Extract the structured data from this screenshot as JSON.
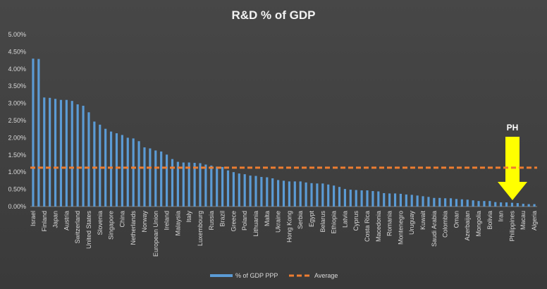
{
  "chart_data": {
    "type": "bar",
    "title": "R&D % of GDP",
    "categories": [
      "Israel",
      null,
      "Finland",
      null,
      "Japan",
      null,
      "Austria",
      null,
      "Switzerland",
      null,
      "United States",
      null,
      "Slovenia",
      null,
      "Singapore",
      null,
      "China",
      null,
      "Netherlands",
      null,
      "Norway",
      null,
      "European Union",
      null,
      "Ireland",
      null,
      "Malaysia",
      null,
      "Italy",
      null,
      "Luxembourg",
      null,
      "Russia",
      null,
      "Brazil",
      null,
      "Greece",
      null,
      "Poland",
      null,
      "Lithuania",
      null,
      "Malta",
      null,
      "Ukraine",
      null,
      "Hong Kong",
      null,
      "Serbia",
      null,
      "Egypt",
      null,
      "Belarus",
      null,
      "Ethiopia",
      null,
      "Latvia",
      null,
      "Cyprus",
      null,
      "Costa Rica",
      null,
      "Macedonia",
      null,
      "Romania",
      null,
      "Montenegro",
      null,
      "Uruguay",
      null,
      "Kuwait",
      null,
      "Saudi Arabia",
      null,
      "Colombia",
      null,
      "Oman",
      null,
      "Azerbaijan",
      null,
      "Mongolia",
      null,
      "Bolivia",
      null,
      "Iran",
      null,
      "Philippines",
      null,
      "Macau",
      null,
      "Algeria"
    ],
    "series": [
      {
        "name": "% of GDP PPP",
        "color": "#5b9bd5",
        "values": [
          4.3,
          4.29,
          3.17,
          3.16,
          3.13,
          3.1,
          3.1,
          3.07,
          2.97,
          2.93,
          2.74,
          2.47,
          2.38,
          2.26,
          2.18,
          2.13,
          2.08,
          2.0,
          1.98,
          1.9,
          1.72,
          1.69,
          1.63,
          1.6,
          1.51,
          1.38,
          1.3,
          1.28,
          1.28,
          1.27,
          1.26,
          1.22,
          1.19,
          1.16,
          1.15,
          1.05,
          1.0,
          0.96,
          0.94,
          0.9,
          0.89,
          0.86,
          0.85,
          0.82,
          0.77,
          0.75,
          0.73,
          0.73,
          0.73,
          0.7,
          0.68,
          0.67,
          0.67,
          0.64,
          0.61,
          0.57,
          0.51,
          0.49,
          0.48,
          0.47,
          0.47,
          0.45,
          0.44,
          0.39,
          0.38,
          0.38,
          0.37,
          0.35,
          0.34,
          0.32,
          0.3,
          0.28,
          0.25,
          0.25,
          0.24,
          0.24,
          0.22,
          0.21,
          0.2,
          0.18,
          0.16,
          0.16,
          0.16,
          0.13,
          0.12,
          0.12,
          0.11,
          0.1,
          0.08,
          0.07,
          0.07
        ]
      }
    ],
    "average": {
      "name": "Average",
      "value": 1.13,
      "color": "#ed7d31"
    },
    "annotation": "PH",
    "ylim": [
      0,
      5
    ],
    "yticks": [
      {
        "value": 0,
        "label": "0.00%"
      },
      {
        "value": 0.5,
        "label": "0.50%"
      },
      {
        "value": 1,
        "label": "1.00%"
      },
      {
        "value": 1.5,
        "label": "1.50%"
      },
      {
        "value": 2,
        "label": "2.00%"
      },
      {
        "value": 2.5,
        "label": "2.50%"
      },
      {
        "value": 3,
        "label": "3.00%"
      },
      {
        "value": 3.5,
        "label": "3.50%"
      },
      {
        "value": 4,
        "label": "4.00%"
      },
      {
        "value": 4.5,
        "label": "4.50%"
      },
      {
        "value": 5,
        "label": "5.00%"
      }
    ]
  }
}
